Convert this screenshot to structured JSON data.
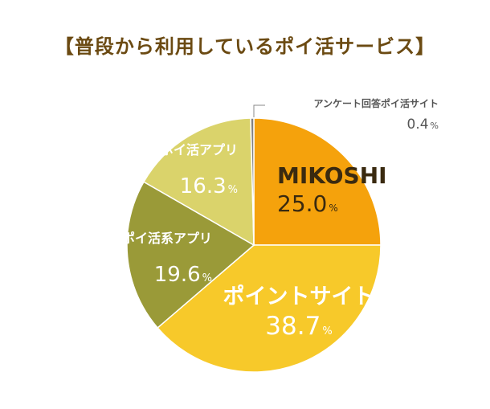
{
  "title": "【普段から利用しているポイ活サービス】",
  "chart_data": {
    "type": "pie",
    "title": "【普段から利用しているポイ活サービス】",
    "slices": [
      {
        "label": "MIKOSHI",
        "value": 25.0,
        "value_text": "25.0",
        "color": "#f5a20c",
        "text_color": "#3a2a10"
      },
      {
        "label": "ポイントサイト",
        "value": 38.7,
        "value_text": "38.7",
        "color": "#f7c92a",
        "text_color": "#ffffff"
      },
      {
        "label": "歩いてポイ活系アプリ",
        "value": 19.6,
        "value_text": "19.6",
        "color": "#9a9a38",
        "text_color": "#ffffff"
      },
      {
        "label": "レシート撮影ポイ活アプリ",
        "value": 16.3,
        "value_text": "16.3",
        "color": "#dad36b",
        "text_color": "#ffffff"
      },
      {
        "label": "アンケート回答ポイ活サイト",
        "value": 0.4,
        "value_text": "0.4",
        "color": "#808080",
        "text_color": "#555555"
      }
    ],
    "unit": "%",
    "start": "top",
    "direction": "clockwise"
  }
}
